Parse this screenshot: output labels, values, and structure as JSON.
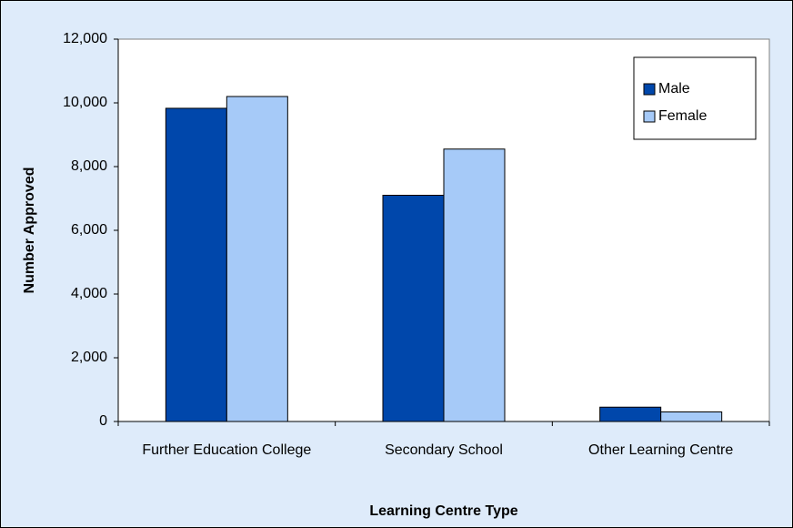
{
  "chart_data": {
    "type": "bar",
    "x_label": "Learning Centre Type",
    "y_label": "Number Approved",
    "categories": [
      "Further Education College",
      "Secondary School",
      "Other Learning Centre"
    ],
    "series": [
      {
        "name": "Male",
        "color": "#0047ab",
        "values": [
          9830,
          7100,
          450
        ]
      },
      {
        "name": "Female",
        "color": "#a6caf8",
        "values": [
          10200,
          8550,
          300
        ]
      }
    ],
    "ylim": [
      0,
      12000
    ],
    "yticks": [
      0,
      {
        "value": 2000,
        "label": "2,000"
      },
      {
        "value": 4000,
        "label": "4,000"
      },
      {
        "value": 6000,
        "label": "6,000"
      },
      {
        "value": 8000,
        "label": "8,000"
      },
      {
        "value": 10000,
        "label": "10,000"
      },
      {
        "value": 12000,
        "label": "12,000"
      }
    ],
    "legend": "upper right"
  }
}
